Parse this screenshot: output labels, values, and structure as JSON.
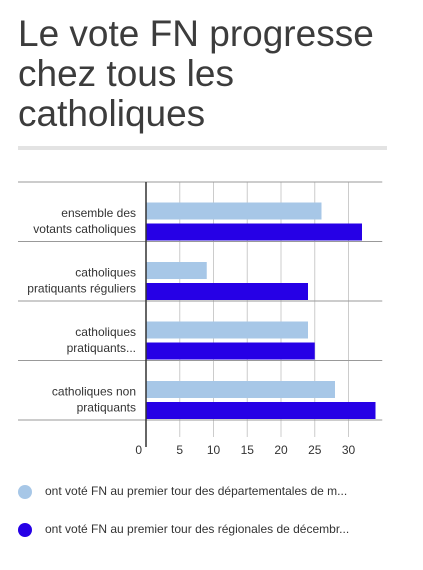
{
  "title": "Le vote FN progresse chez tous les catholiques",
  "colors": {
    "series1": "#a7c7e7",
    "series2": "#2600e6"
  },
  "chart_data": {
    "type": "bar",
    "orientation": "horizontal",
    "categories": [
      [
        "ensemble des",
        "votants catholiques"
      ],
      [
        "catholiques",
        "pratiquants réguliers"
      ],
      [
        "catholiques",
        "pratiquants..."
      ],
      [
        "catholiques non",
        "pratiquants"
      ]
    ],
    "series": [
      {
        "name": "ont voté FN au premier tour des départementales de m...",
        "color": "#a7c7e7",
        "values": [
          26,
          9,
          24,
          28
        ]
      },
      {
        "name": "ont voté FN au premier tour des régionales de décembr...",
        "color": "#2600e6",
        "values": [
          32,
          24,
          25,
          34
        ]
      }
    ],
    "xticks": [
      0,
      5,
      10,
      15,
      20,
      25,
      30
    ],
    "xlim": [
      0,
      35
    ],
    "grid": true,
    "legend_position": "bottom"
  }
}
